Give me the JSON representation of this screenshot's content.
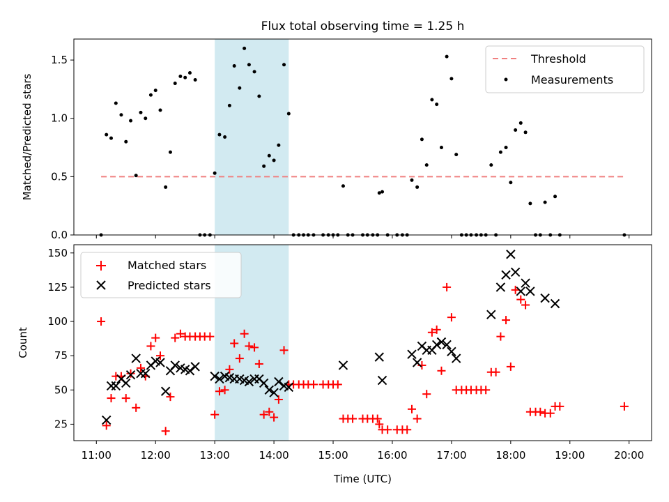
{
  "chart_data": [
    {
      "type": "scatter",
      "title": "Flux total observing time = 1.25 h",
      "ylabel": "Matched/Predicted stars",
      "ylim": [
        0,
        1.68
      ],
      "yticks": [
        0.0,
        0.5,
        1.0,
        1.5
      ],
      "ytick_labels": [
        "0.0",
        "0.5",
        "1.0",
        "1.5"
      ],
      "highlight_span_hours": [
        13.0,
        14.25
      ],
      "highlight_color": "#add8e6",
      "legend_position": "top-right",
      "threshold": {
        "name": "Threshold",
        "value": 0.5,
        "x_range": [
          11.08,
          19.92
        ],
        "color": "#f08080"
      },
      "series": [
        {
          "name": "Measurements",
          "color": "#000000",
          "points": [
            [
              11.08,
              0.0
            ],
            [
              11.17,
              0.86
            ],
            [
              11.25,
              0.83
            ],
            [
              11.33,
              1.13
            ],
            [
              11.42,
              1.03
            ],
            [
              11.5,
              0.8
            ],
            [
              11.58,
              0.98
            ],
            [
              11.67,
              0.51
            ],
            [
              11.75,
              1.05
            ],
            [
              11.83,
              1.0
            ],
            [
              11.92,
              1.2
            ],
            [
              12.0,
              1.24
            ],
            [
              12.08,
              1.07
            ],
            [
              12.17,
              0.41
            ],
            [
              12.25,
              0.71
            ],
            [
              12.33,
              1.3
            ],
            [
              12.42,
              1.36
            ],
            [
              12.5,
              1.35
            ],
            [
              12.58,
              1.39
            ],
            [
              12.67,
              1.33
            ],
            [
              12.75,
              0.0
            ],
            [
              12.83,
              0.0
            ],
            [
              12.92,
              0.0
            ],
            [
              13.0,
              0.53
            ],
            [
              13.08,
              0.86
            ],
            [
              13.17,
              0.84
            ],
            [
              13.25,
              1.11
            ],
            [
              13.33,
              1.45
            ],
            [
              13.42,
              1.26
            ],
            [
              13.5,
              1.6
            ],
            [
              13.58,
              1.46
            ],
            [
              13.67,
              1.4
            ],
            [
              13.75,
              1.19
            ],
            [
              13.83,
              0.59
            ],
            [
              13.92,
              0.68
            ],
            [
              14.0,
              0.64
            ],
            [
              14.08,
              0.77
            ],
            [
              14.17,
              1.46
            ],
            [
              14.25,
              1.04
            ],
            [
              14.33,
              0.0
            ],
            [
              14.42,
              0.0
            ],
            [
              14.5,
              0.0
            ],
            [
              14.58,
              0.0
            ],
            [
              14.67,
              0.0
            ],
            [
              14.83,
              0.0
            ],
            [
              14.92,
              0.0
            ],
            [
              15.0,
              0.0
            ],
            [
              15.08,
              0.0
            ],
            [
              15.17,
              0.42
            ],
            [
              15.25,
              0.0
            ],
            [
              15.33,
              0.0
            ],
            [
              15.5,
              0.0
            ],
            [
              15.58,
              0.0
            ],
            [
              15.67,
              0.0
            ],
            [
              15.75,
              0.0
            ],
            [
              15.78,
              0.36
            ],
            [
              15.83,
              0.37
            ],
            [
              15.92,
              0.0
            ],
            [
              16.08,
              0.0
            ],
            [
              16.17,
              0.0
            ],
            [
              16.25,
              0.0
            ],
            [
              16.33,
              0.47
            ],
            [
              16.42,
              0.41
            ],
            [
              16.5,
              0.82
            ],
            [
              16.58,
              0.6
            ],
            [
              16.67,
              1.16
            ],
            [
              16.75,
              1.12
            ],
            [
              16.83,
              0.75
            ],
            [
              16.92,
              1.53
            ],
            [
              17.0,
              1.34
            ],
            [
              17.08,
              0.69
            ],
            [
              17.17,
              0.0
            ],
            [
              17.25,
              0.0
            ],
            [
              17.33,
              0.0
            ],
            [
              17.42,
              0.0
            ],
            [
              17.5,
              0.0
            ],
            [
              17.58,
              0.0
            ],
            [
              17.67,
              0.6
            ],
            [
              17.75,
              0.0
            ],
            [
              17.83,
              0.71
            ],
            [
              17.92,
              0.75
            ],
            [
              18.0,
              0.45
            ],
            [
              18.08,
              0.9
            ],
            [
              18.17,
              0.96
            ],
            [
              18.25,
              0.88
            ],
            [
              18.33,
              0.27
            ],
            [
              18.42,
              0.0
            ],
            [
              18.5,
              0.0
            ],
            [
              18.58,
              0.28
            ],
            [
              18.67,
              0.0
            ],
            [
              18.75,
              0.33
            ],
            [
              18.83,
              0.0
            ],
            [
              19.92,
              0.0
            ]
          ]
        }
      ]
    },
    {
      "type": "scatter",
      "xlabel": "Time (UTC)",
      "ylabel": "Count",
      "ylim": [
        13,
        156
      ],
      "xlim": [
        10.62,
        20.38
      ],
      "yticks": [
        25,
        50,
        75,
        100,
        125,
        150
      ],
      "ytick_labels": [
        "25",
        "50",
        "75",
        "100",
        "125",
        "150"
      ],
      "xticks": [
        11,
        12,
        13,
        14,
        15,
        16,
        17,
        18,
        19,
        20
      ],
      "xtick_labels": [
        "11:00",
        "12:00",
        "13:00",
        "14:00",
        "15:00",
        "16:00",
        "17:00",
        "18:00",
        "19:00",
        "20:00"
      ],
      "highlight_span_hours": [
        13.0,
        14.25
      ],
      "highlight_color": "#add8e6",
      "legend_position": "top-left",
      "series": [
        {
          "name": "Matched stars",
          "color": "#ff0000",
          "marker": "+",
          "points": [
            [
              11.08,
              100
            ],
            [
              11.17,
              24
            ],
            [
              11.25,
              44
            ],
            [
              11.33,
              60
            ],
            [
              11.42,
              60
            ],
            [
              11.5,
              44
            ],
            [
              11.58,
              62
            ],
            [
              11.67,
              37
            ],
            [
              11.75,
              66
            ],
            [
              11.83,
              60
            ],
            [
              11.92,
              82
            ],
            [
              12.0,
              88
            ],
            [
              12.08,
              75
            ],
            [
              12.17,
              20
            ],
            [
              12.25,
              45
            ],
            [
              12.33,
              88
            ],
            [
              12.42,
              91
            ],
            [
              12.5,
              89
            ],
            [
              12.58,
              89
            ],
            [
              12.67,
              89
            ],
            [
              12.75,
              89
            ],
            [
              12.83,
              89
            ],
            [
              12.92,
              89
            ],
            [
              13.0,
              32
            ],
            [
              13.08,
              49
            ],
            [
              13.17,
              50
            ],
            [
              13.25,
              65
            ],
            [
              13.33,
              84
            ],
            [
              13.42,
              73
            ],
            [
              13.5,
              91
            ],
            [
              13.58,
              82
            ],
            [
              13.67,
              81
            ],
            [
              13.75,
              69
            ],
            [
              13.83,
              32
            ],
            [
              13.92,
              34
            ],
            [
              14.0,
              30
            ],
            [
              14.08,
              43
            ],
            [
              14.17,
              79
            ],
            [
              14.25,
              54
            ],
            [
              14.33,
              54
            ],
            [
              14.42,
              54
            ],
            [
              14.5,
              54
            ],
            [
              14.58,
              54
            ],
            [
              14.67,
              54
            ],
            [
              14.83,
              54
            ],
            [
              14.92,
              54
            ],
            [
              15.0,
              54
            ],
            [
              15.08,
              54
            ],
            [
              15.17,
              29
            ],
            [
              15.25,
              29
            ],
            [
              15.33,
              29
            ],
            [
              15.5,
              29
            ],
            [
              15.58,
              29
            ],
            [
              15.67,
              29
            ],
            [
              15.75,
              29
            ],
            [
              15.78,
              25
            ],
            [
              15.83,
              21
            ],
            [
              15.92,
              21
            ],
            [
              16.08,
              21
            ],
            [
              16.17,
              21
            ],
            [
              16.25,
              21
            ],
            [
              16.33,
              36
            ],
            [
              16.42,
              29
            ],
            [
              16.5,
              68
            ],
            [
              16.58,
              47
            ],
            [
              16.67,
              92
            ],
            [
              16.75,
              94
            ],
            [
              16.83,
              64
            ],
            [
              16.92,
              125
            ],
            [
              17.0,
              103
            ],
            [
              17.08,
              50
            ],
            [
              17.17,
              50
            ],
            [
              17.25,
              50
            ],
            [
              17.33,
              50
            ],
            [
              17.42,
              50
            ],
            [
              17.5,
              50
            ],
            [
              17.58,
              50
            ],
            [
              17.67,
              63
            ],
            [
              17.75,
              63
            ],
            [
              17.83,
              89
            ],
            [
              17.92,
              101
            ],
            [
              18.0,
              67
            ],
            [
              18.08,
              123
            ],
            [
              18.17,
              116
            ],
            [
              18.25,
              112
            ],
            [
              18.33,
              34
            ],
            [
              18.42,
              34
            ],
            [
              18.5,
              34
            ],
            [
              18.58,
              33
            ],
            [
              18.67,
              33
            ],
            [
              18.75,
              38
            ],
            [
              18.83,
              38
            ],
            [
              19.92,
              38
            ]
          ]
        },
        {
          "name": "Predicted stars",
          "color": "#000000",
          "marker": "x",
          "points": [
            [
              11.17,
              28
            ],
            [
              11.25,
              53
            ],
            [
              11.33,
              53
            ],
            [
              11.42,
              58
            ],
            [
              11.5,
              55
            ],
            [
              11.58,
              61
            ],
            [
              11.67,
              73
            ],
            [
              11.75,
              62
            ],
            [
              11.83,
              62
            ],
            [
              11.92,
              68
            ],
            [
              12.0,
              71
            ],
            [
              12.08,
              70
            ],
            [
              12.17,
              49
            ],
            [
              12.25,
              64
            ],
            [
              12.33,
              68
            ],
            [
              12.42,
              66
            ],
            [
              12.5,
              65
            ],
            [
              12.58,
              64
            ],
            [
              12.67,
              67
            ],
            [
              13.0,
              60
            ],
            [
              13.08,
              58
            ],
            [
              13.17,
              60
            ],
            [
              13.25,
              59
            ],
            [
              13.33,
              58
            ],
            [
              13.42,
              58
            ],
            [
              13.5,
              57
            ],
            [
              13.58,
              56
            ],
            [
              13.67,
              58
            ],
            [
              13.75,
              58
            ],
            [
              13.83,
              55
            ],
            [
              13.92,
              50
            ],
            [
              14.0,
              48
            ],
            [
              14.08,
              56
            ],
            [
              14.17,
              53
            ],
            [
              14.25,
              52
            ],
            [
              15.17,
              68
            ],
            [
              15.78,
              74
            ],
            [
              15.83,
              57
            ],
            [
              16.33,
              76
            ],
            [
              16.42,
              70
            ],
            [
              16.5,
              82
            ],
            [
              16.58,
              79
            ],
            [
              16.67,
              79
            ],
            [
              16.75,
              83
            ],
            [
              16.83,
              85
            ],
            [
              16.92,
              83
            ],
            [
              17.0,
              78
            ],
            [
              17.08,
              73
            ],
            [
              17.67,
              105
            ],
            [
              17.83,
              125
            ],
            [
              17.92,
              134
            ],
            [
              18.0,
              149
            ],
            [
              18.08,
              136
            ],
            [
              18.17,
              122
            ],
            [
              18.25,
              128
            ],
            [
              18.33,
              122
            ],
            [
              18.58,
              117
            ],
            [
              18.75,
              113
            ]
          ]
        }
      ]
    }
  ]
}
